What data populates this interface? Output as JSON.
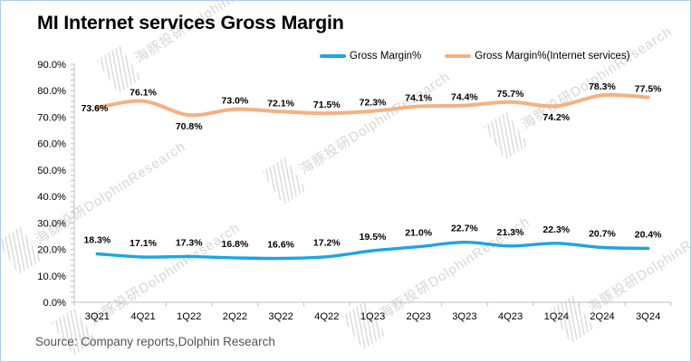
{
  "title": "MI Internet services Gross Margin",
  "source": "Source: Company reports,Dolphin Research",
  "watermark_text": "海豚投研DolphinResearch",
  "colors": {
    "gross_margin_line": "#1ba6e3",
    "internet_services_line": "#f4b183",
    "axis": "#bfbfbf",
    "border": "#aecdea",
    "footer_text": "#545454"
  },
  "chart_data": {
    "type": "line",
    "title": "MI Internet services Gross Margin",
    "xlabel": "",
    "ylabel": "",
    "categories": [
      "3Q21",
      "4Q21",
      "1Q22",
      "2Q22",
      "3Q22",
      "4Q22",
      "1Q23",
      "2Q23",
      "3Q23",
      "4Q23",
      "1Q24",
      "2Q24",
      "3Q24"
    ],
    "series": [
      {
        "name": "Gross Margin%",
        "color": "#1ba6e3",
        "values": [
          18.3,
          17.1,
          17.3,
          16.8,
          16.6,
          17.2,
          19.5,
          21.0,
          22.7,
          21.3,
          22.3,
          20.7,
          20.4
        ],
        "label_below": [],
        "label_left": []
      },
      {
        "name": "Gross Margin%(Internet services)",
        "color": "#f4b183",
        "values": [
          73.6,
          76.1,
          70.8,
          73.0,
          72.1,
          71.5,
          72.3,
          74.1,
          74.4,
          75.7,
          74.2,
          78.3,
          77.5
        ],
        "label_below": [
          "1Q22",
          "1Q24"
        ],
        "label_left": [
          "3Q21"
        ]
      }
    ],
    "ylim": [
      0,
      90
    ],
    "ytick_step": 10,
    "ytick_minor": 2,
    "yticks": [
      "0.0%",
      "10.0%",
      "20.0%",
      "30.0%",
      "40.0%",
      "50.0%",
      "60.0%",
      "70.0%",
      "80.0%",
      "90.0%"
    ],
    "axis_color": "#bfbfbf",
    "grid": false,
    "legend_position": "top-right",
    "smoothed_lines": true,
    "data_labels": true
  }
}
